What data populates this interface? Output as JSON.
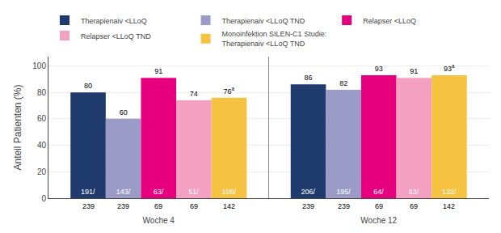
{
  "chart_data": {
    "type": "bar",
    "categories": [
      "Woche 4",
      "Woche 12"
    ],
    "series": [
      {
        "name": "Therapienaiv <LLoQ",
        "color": "#1f3b6e",
        "values": [
          80,
          86
        ],
        "numerators": [
          "191/",
          "206/"
        ],
        "denominators": [
          "239",
          "239"
        ]
      },
      {
        "name": "Therapienaiv <LLoQ TND",
        "color": "#9b9bc8",
        "values": [
          60,
          82
        ],
        "numerators": [
          "143/",
          "195/"
        ],
        "denominators": [
          "239",
          "239"
        ]
      },
      {
        "name": "Relapser <LLoQ",
        "color": "#e6007e",
        "values": [
          91,
          93
        ],
        "numerators": [
          "63/",
          "64/"
        ],
        "denominators": [
          "69",
          "69"
        ]
      },
      {
        "name": "Relapser <LLoQ TND",
        "color": "#f4a0c0",
        "values": [
          74,
          91
        ],
        "numerators": [
          "51/",
          "63/"
        ],
        "denominators": [
          "69",
          "69"
        ]
      },
      {
        "name": "Monoinfektion SILEN-C1 Studie:\nTherapienaiv <LLoQ TND",
        "color": "#f5c242",
        "values": [
          76,
          93
        ],
        "numerators": [
          "108/",
          "132/"
        ],
        "denominators": [
          "142",
          "142"
        ],
        "superscripts": [
          "a",
          "a"
        ]
      }
    ],
    "ylabel": "Anteil Patienten (%)",
    "ylim": [
      0,
      107
    ],
    "yticks": [
      0,
      20,
      40,
      60,
      80,
      100
    ],
    "grid": true,
    "legend": "top",
    "data_labels": true
  }
}
